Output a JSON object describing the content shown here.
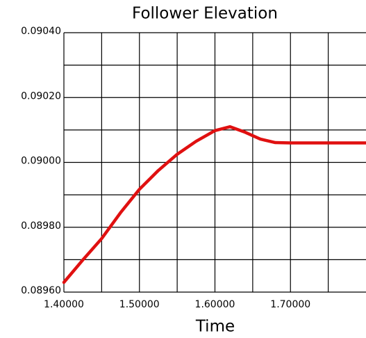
{
  "chart_data": {
    "type": "line",
    "title": "Follower Elevation",
    "x_label": "Time",
    "x": [
      1.4,
      1.425,
      1.45,
      1.475,
      1.5,
      1.525,
      1.55,
      1.575,
      1.6,
      1.62,
      1.64,
      1.66,
      1.68,
      1.7,
      1.8
    ],
    "series": [
      {
        "name": "Follower Elevation",
        "color": "#e01010",
        "values": [
          0.08963,
          0.089699,
          0.089765,
          0.089845,
          0.089917,
          0.089975,
          0.090025,
          0.090065,
          0.090098,
          0.09011,
          0.090093,
          0.090072,
          0.090061,
          0.09006,
          0.09006
        ]
      }
    ],
    "xlim": [
      1.4,
      1.8
    ],
    "ylim": [
      0.0896,
      0.0904
    ],
    "xticks": [
      {
        "value": 1.4,
        "label": "1.40000"
      },
      {
        "value": 1.5,
        "label": "1.50000"
      },
      {
        "value": 1.6,
        "label": "1.60000"
      },
      {
        "value": 1.7,
        "label": "1.70000"
      }
    ],
    "yticks": [
      {
        "value": 0.0896,
        "label": "0.08960"
      },
      {
        "value": 0.0898,
        "label": "0.08980"
      },
      {
        "value": 0.09,
        "label": "0.09000"
      },
      {
        "value": 0.0902,
        "label": "0.09020"
      },
      {
        "value": 0.0904,
        "label": "0.09040"
      }
    ],
    "xgrid": [
      1.4,
      1.45,
      1.5,
      1.55,
      1.6,
      1.65,
      1.7,
      1.75
    ],
    "ygrid": [
      0.0896,
      0.0897,
      0.0898,
      0.0899,
      0.09,
      0.0901,
      0.0902,
      0.0903,
      0.0904
    ]
  }
}
